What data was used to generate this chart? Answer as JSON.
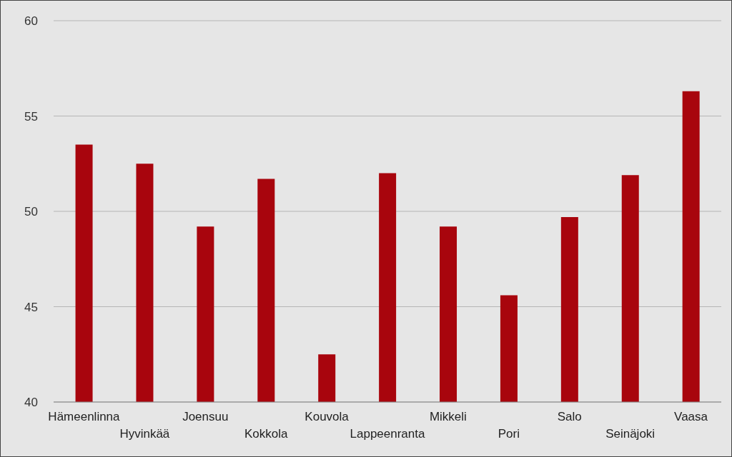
{
  "chart_data": {
    "type": "bar",
    "categories": [
      "Hämeenlinna",
      "Hyvinkää",
      "Joensuu",
      "Kokkola",
      "Kouvola",
      "Lappeenranta",
      "Mikkeli",
      "Pori",
      "Salo",
      "Seinäjoki",
      "Vaasa"
    ],
    "values": [
      53.5,
      52.5,
      49.2,
      51.7,
      42.5,
      52.0,
      49.2,
      45.6,
      49.7,
      51.9,
      56.3
    ],
    "color": "#a8050d",
    "ylim": [
      40,
      60
    ],
    "yticks": [
      40,
      45,
      50,
      55,
      60
    ],
    "grid": "y"
  }
}
